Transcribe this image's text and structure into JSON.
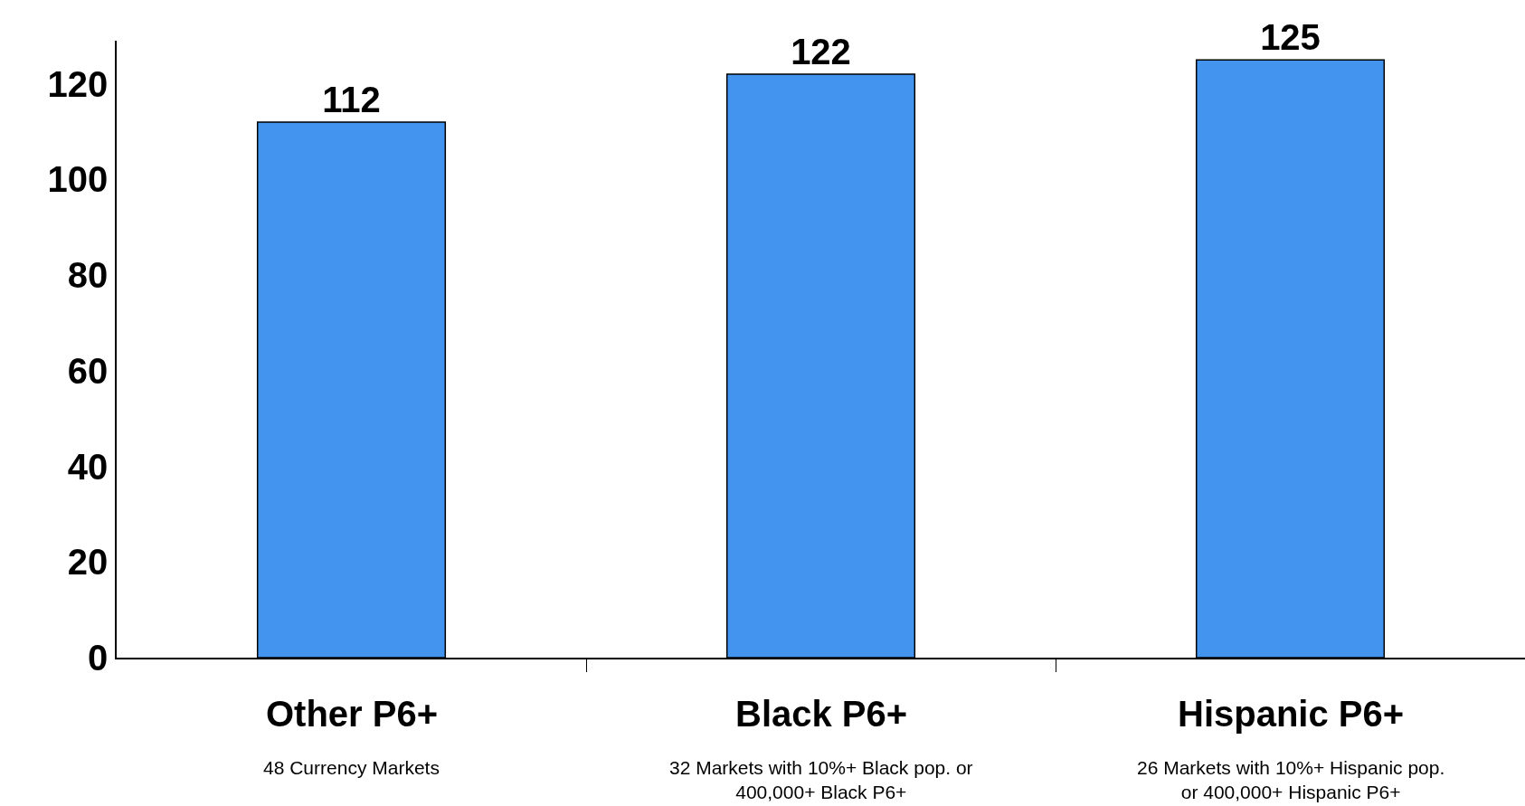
{
  "chart_data": {
    "type": "bar",
    "categories": [
      "Other P6+",
      "Black P6+",
      "Hispanic P6+"
    ],
    "values": [
      112,
      122,
      125
    ],
    "color": "#4394ee",
    "ylim": [
      0,
      129
    ],
    "yticks": [
      0,
      20,
      40,
      60,
      80,
      100,
      120
    ],
    "legend": false,
    "data_labels": true,
    "annotations": [
      "48 Currency Markets",
      "32 Markets with 10%+ Black pop. or\n400,000+ Black P6+",
      "26 Markets with 10%+ Hispanic pop.\nor 400,000+ Hispanic P6+"
    ]
  }
}
